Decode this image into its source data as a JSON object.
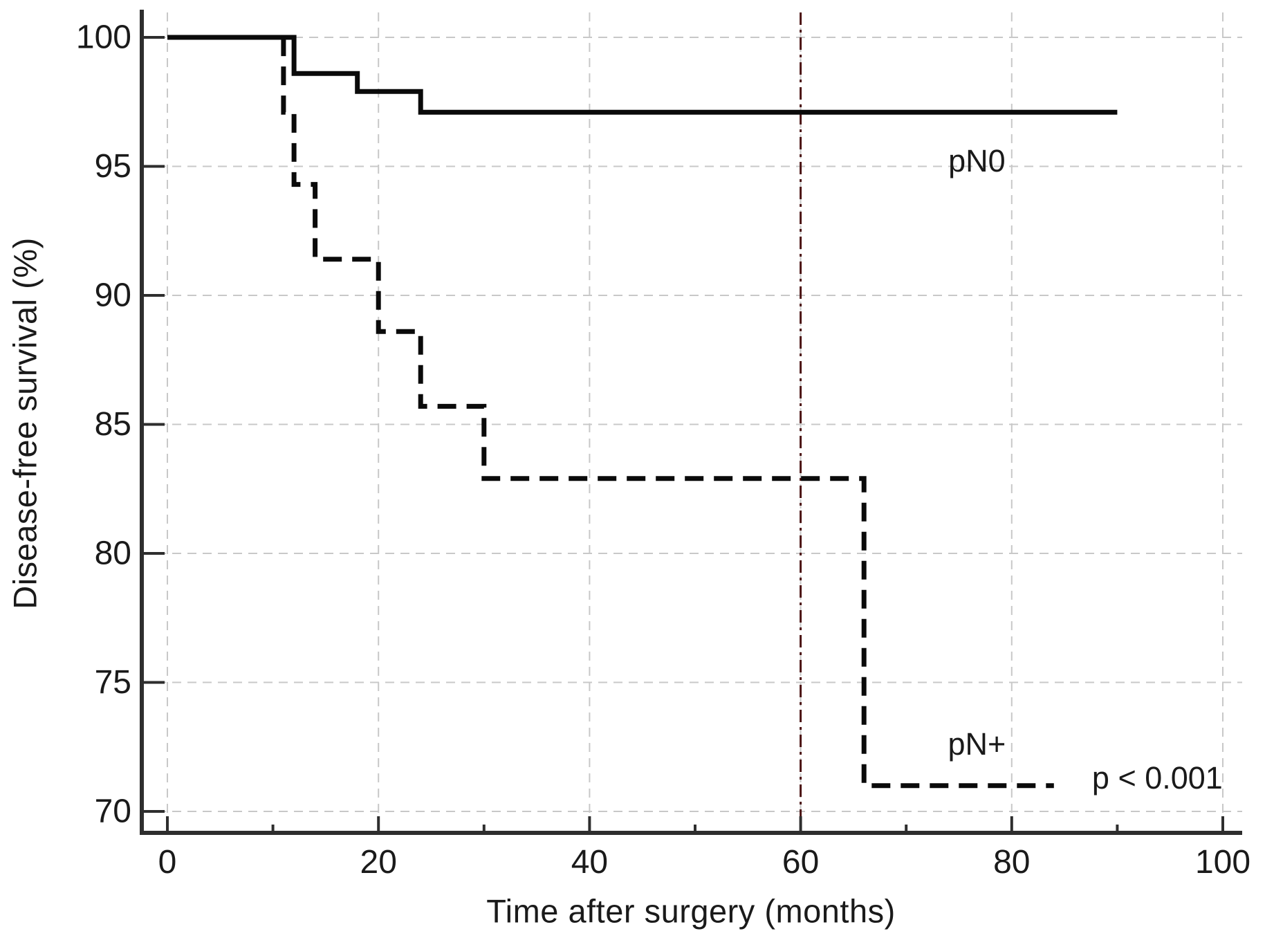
{
  "chart_data": {
    "type": "line",
    "subtype": "kaplan-meier-step",
    "title": "",
    "xlabel": "Time after surgery (months)",
    "ylabel": "Disease-free survival (%)",
    "xlim": [
      0,
      100
    ],
    "ylim": [
      70,
      100
    ],
    "x_major_ticks": [
      0,
      20,
      40,
      60,
      80,
      100
    ],
    "x_minor_ticks": [
      10,
      30,
      50,
      70,
      90
    ],
    "y_ticks": [
      70,
      75,
      80,
      85,
      90,
      95,
      100
    ],
    "grid": true,
    "legend_position": "none",
    "reference_line": {
      "axis": "x",
      "value": 60,
      "style": "dash-dot",
      "color": "#4a1212"
    },
    "series": [
      {
        "name": "pN0",
        "style": "solid",
        "color": "#0a0a0a",
        "points": [
          [
            0,
            100
          ],
          [
            12,
            100
          ],
          [
            12,
            98.6
          ],
          [
            18,
            98.6
          ],
          [
            18,
            97.9
          ],
          [
            24,
            97.9
          ],
          [
            24,
            97.1
          ],
          [
            90,
            97.1
          ]
        ]
      },
      {
        "name": "pN+",
        "style": "dashed",
        "color": "#0a0a0a",
        "points": [
          [
            0,
            100
          ],
          [
            11,
            100
          ],
          [
            11,
            97.1
          ],
          [
            12,
            97.1
          ],
          [
            12,
            94.3
          ],
          [
            14,
            94.3
          ],
          [
            14,
            91.4
          ],
          [
            20,
            91.4
          ],
          [
            20,
            88.6
          ],
          [
            24,
            88.6
          ],
          [
            24,
            85.7
          ],
          [
            30,
            85.7
          ],
          [
            30,
            82.9
          ],
          [
            66,
            82.9
          ],
          [
            66,
            71
          ],
          [
            84,
            71
          ]
        ]
      }
    ],
    "annotations": [
      {
        "id": "label-pN0",
        "text": "pN0",
        "x": 76.7,
        "y": 95.2
      },
      {
        "id": "label-pN-plus",
        "text": "pN+",
        "x": 76.7,
        "y": 72.6
      },
      {
        "id": "p-value",
        "text": "p < 0.001",
        "x": 93.8,
        "y": 71.3
      }
    ]
  },
  "colors": {
    "axis": "#2e2e2e",
    "grid": "#c8c8c8",
    "curve": "#0a0a0a",
    "reference": "#4a1212",
    "text": "#1a1a1a"
  }
}
